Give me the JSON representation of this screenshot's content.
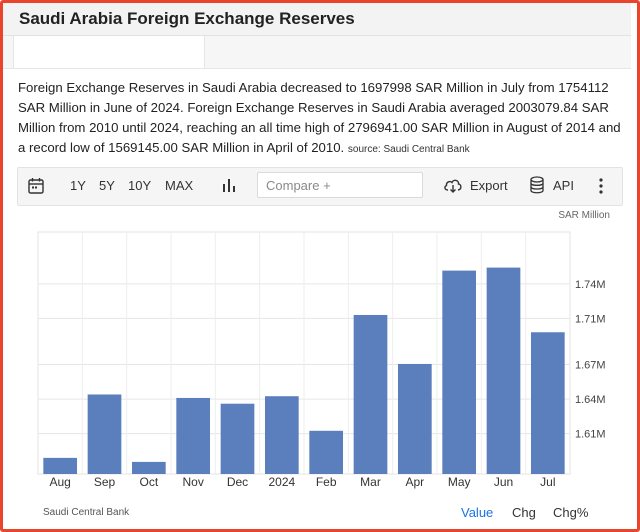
{
  "page": {
    "title": "Saudi Arabia Foreign Exchange Reserves",
    "summary": "Foreign Exchange Reserves in Saudi Arabia decreased to 1697998 SAR Million in July from 1754112 SAR Million in June of 2024. Foreign Exchange Reserves in Saudi Arabia averaged 2003079.84 SAR Million from 2010 until 2024, reaching an all time high of 2796941.00 SAR Million in August of 2014 and a record low of 1569145.00 SAR Million in April of 2010.",
    "source_note": "source: Saudi Central Bank"
  },
  "toolbar": {
    "calendar_icon": "calendar-icon",
    "ranges": [
      "1Y",
      "5Y",
      "10Y",
      "MAX"
    ],
    "chart_type_icon": "bar-chart-icon",
    "compare_placeholder": "Compare +",
    "export_label": "Export",
    "export_icon": "cloud-download-icon",
    "api_label": "API",
    "api_icon": "database-icon",
    "more_icon": "more-vertical-icon"
  },
  "footer": {
    "source": "Saudi Central Bank",
    "value_label": "Value",
    "chg_label": "Chg",
    "chgpct_label": "Chg%"
  },
  "colors": {
    "bar": "#5b7fbd",
    "accent": "#1a73e8",
    "frame": "#e8452c"
  },
  "chart_data": {
    "type": "bar",
    "unit": "SAR Million",
    "categories": [
      "Aug",
      "Sep",
      "Oct",
      "Nov",
      "Dec",
      "2024",
      "Feb",
      "Mar",
      "Apr",
      "May",
      "Jun",
      "Jul"
    ],
    "values": [
      1589000,
      1644000,
      1585500,
      1641000,
      1636000,
      1642500,
      1612500,
      1713000,
      1670500,
      1751500,
      1754112,
      1697998
    ],
    "ylim": [
      1575000,
      1785000
    ],
    "yticks": [
      1610000,
      1640000,
      1670000,
      1710000,
      1740000
    ],
    "ytick_labels": [
      "1.61M",
      "1.64M",
      "1.67M",
      "1.71M",
      "1.74M"
    ],
    "grid": true
  }
}
